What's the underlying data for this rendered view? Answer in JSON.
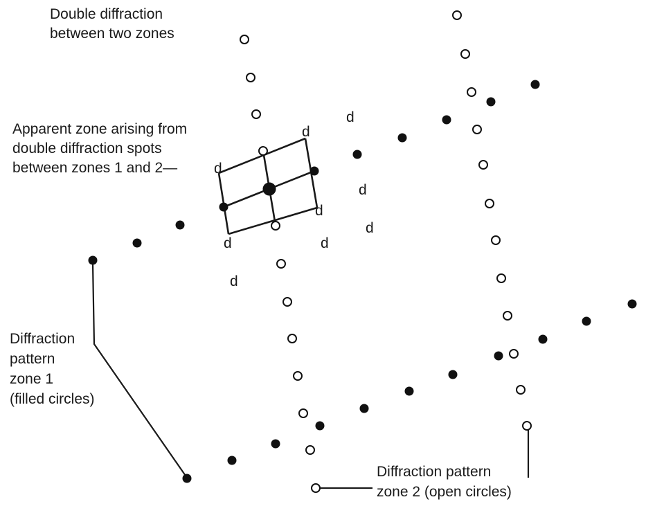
{
  "labels": {
    "double_diffraction": [
      "Double diffraction",
      "between two zones"
    ],
    "apparent_zone": [
      "Apparent zone arising from",
      "double diffraction spots",
      "between zones 1 and 2—"
    ],
    "zone1": [
      "Diffraction",
      "pattern",
      "zone 1",
      "(filled circles)"
    ],
    "zone2": [
      "Diffraction pattern",
      "zone 2 (open circles)"
    ],
    "spot_letter": "d"
  },
  "spot_types": [
    "filled",
    "open",
    "double-diffraction"
  ]
}
